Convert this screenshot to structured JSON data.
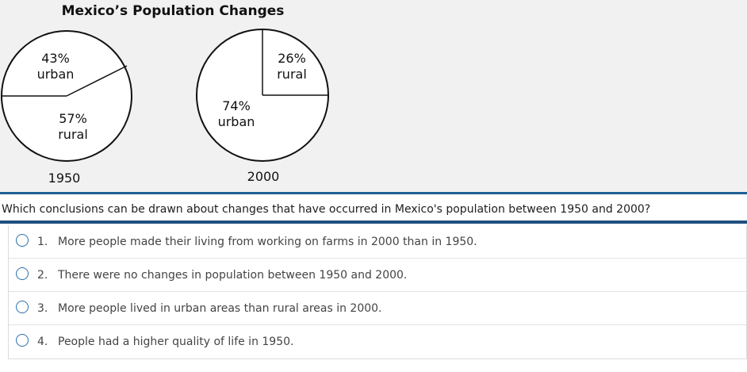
{
  "figure": {
    "title": "Mexico’s Population Changes",
    "pies": [
      {
        "year": "1950",
        "slices": [
          {
            "label_pct": "43%",
            "label_name": "urban",
            "value": 43
          },
          {
            "label_pct": "57%",
            "label_name": "rural",
            "value": 57
          }
        ]
      },
      {
        "year": "2000",
        "slices": [
          {
            "label_pct": "26%",
            "label_name": "rural",
            "value": 26
          },
          {
            "label_pct": "74%",
            "label_name": "urban",
            "value": 74
          }
        ]
      }
    ]
  },
  "chart_data": [
    {
      "type": "pie",
      "title": "Mexico’s Population Changes",
      "caption": "1950",
      "categories": [
        "urban",
        "rural"
      ],
      "values": [
        43,
        57
      ]
    },
    {
      "type": "pie",
      "title": "Mexico’s Population Changes",
      "caption": "2000",
      "categories": [
        "rural",
        "urban"
      ],
      "values": [
        26,
        74
      ]
    }
  ],
  "question": {
    "text": "Which conclusions can be drawn about changes that have occurred in Mexico's population between 1950 and 2000?"
  },
  "options": [
    {
      "num": "1.",
      "text": "More people made their living from working on farms in 2000 than in 1950."
    },
    {
      "num": "2.",
      "text": "There were no changes in population between 1950 and 2000."
    },
    {
      "num": "3.",
      "text": "More people lived in urban areas than rural areas in 2000."
    },
    {
      "num": "4.",
      "text": "People had a higher quality of life in 1950."
    }
  ]
}
